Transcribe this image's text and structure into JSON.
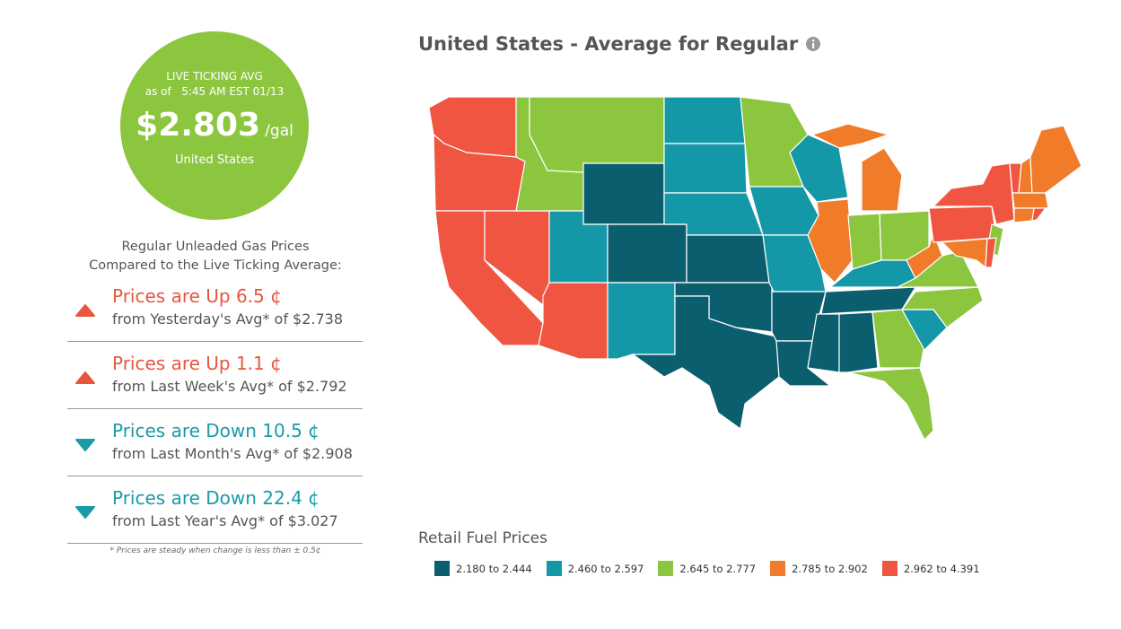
{
  "live_avg": {
    "label": "LIVE TICKING AVG",
    "as_of": "as of",
    "time": "5:45 AM EST 01/13",
    "price": "$2.803",
    "unit": "/gal",
    "region": "United States"
  },
  "comparison": {
    "heading": [
      "Regular Unleaded Gas Prices",
      "Compared to the Live Ticking Average:"
    ],
    "items": [
      {
        "direction": "up",
        "change": "Prices are Up 6.5 ¢",
        "detail": "from Yesterday's Avg* of $2.738"
      },
      {
        "direction": "up",
        "change": "Prices are Up 1.1 ¢",
        "detail": "from Last Week's Avg* of $2.792"
      },
      {
        "direction": "down",
        "change": "Prices are Down 10.5 ¢",
        "detail": "from Last Month's Avg* of $2.908"
      },
      {
        "direction": "down",
        "change": "Prices are Down 22.4 ¢",
        "detail": "from Last Year's Avg* of $3.027"
      }
    ],
    "footnote": "* Prices are steady when change is less than ± 0.5¢"
  },
  "map": {
    "title": "United States - Average for Regular",
    "legend_title": "Retail Fuel Prices",
    "legend": [
      {
        "label": "2.180 to 2.444",
        "color": "#0b5e6e"
      },
      {
        "label": "2.460 to 2.597",
        "color": "#1498a8"
      },
      {
        "label": "2.645 to 2.777",
        "color": "#8cc63f"
      },
      {
        "label": "2.785 to 2.902",
        "color": "#f07c2a"
      },
      {
        "label": "2.962 to 4.391",
        "color": "#ef5541"
      }
    ]
  }
}
